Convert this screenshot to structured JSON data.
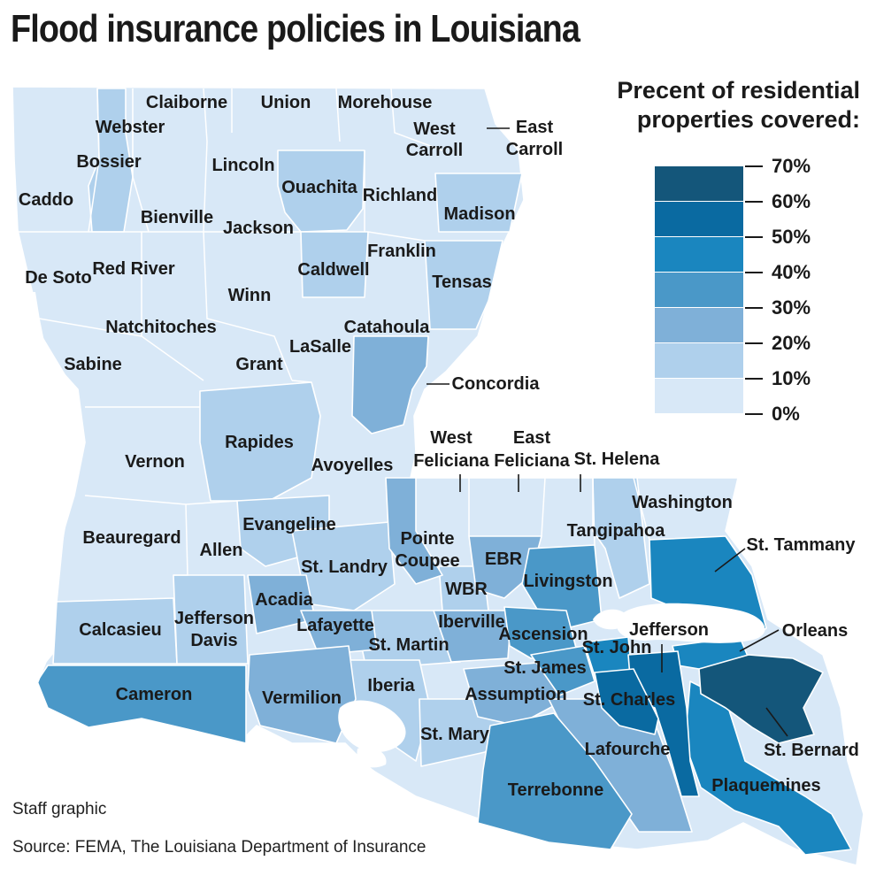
{
  "title": "Flood insurance policies in Louisiana",
  "legend": {
    "title_line1": "Precent of residential",
    "title_line2": "properties covered:",
    "ticks": [
      "70%",
      "60%",
      "50%",
      "40%",
      "30%",
      "20%",
      "10%",
      "0%"
    ],
    "bins": [
      {
        "range": "60-70%",
        "color": "#14567a"
      },
      {
        "range": "50-60%",
        "color": "#0a6aa1"
      },
      {
        "range": "40-50%",
        "color": "#1a86bf"
      },
      {
        "range": "30-40%",
        "color": "#4a98c8"
      },
      {
        "range": "20-30%",
        "color": "#7fb0d8"
      },
      {
        "range": "10-20%",
        "color": "#afd0ec"
      },
      {
        "range": "0-10%",
        "color": "#d8e8f7"
      }
    ]
  },
  "counties": {
    "claiborne": "Claiborne",
    "union": "Union",
    "morehouse": "Morehouse",
    "west_carroll_1": "West",
    "west_carroll_2": "Carroll",
    "east_carroll_1": "East",
    "east_carroll_2": "Carroll",
    "webster": "Webster",
    "bossier": "Bossier",
    "lincoln": "Lincoln",
    "caddo": "Caddo",
    "ouachita": "Ouachita",
    "richland": "Richland",
    "bienville": "Bienville",
    "madison": "Madison",
    "jackson": "Jackson",
    "franklin": "Franklin",
    "de_soto": "De Soto",
    "red_river": "Red River",
    "caldwell": "Caldwell",
    "tensas": "Tensas",
    "winn": "Winn",
    "natchitoches": "Natchitoches",
    "catahoula": "Catahoula",
    "lasalle": "LaSalle",
    "sabine": "Sabine",
    "grant": "Grant",
    "concordia": "Concordia",
    "rapides": "Rapides",
    "vernon": "Vernon",
    "avoyelles": "Avoyelles",
    "west_feliciana_1": "West",
    "west_feliciana_2": "Feliciana",
    "east_feliciana_1": "East",
    "east_feliciana_2": "Feliciana",
    "st_helena": "St. Helena",
    "washington": "Washington",
    "evangeline": "Evangeline",
    "beauregard": "Beauregard",
    "allen": "Allen",
    "pointe_coupee_1": "Pointe",
    "pointe_coupee_2": "Coupee",
    "tangipahoa": "Tangipahoa",
    "st_tammany": "St. Tammany",
    "st_landry": "St. Landry",
    "ebr": "EBR",
    "livingston": "Livingston",
    "acadia": "Acadia",
    "wbr": "WBR",
    "calcasieu": "Calcasieu",
    "jefferson_davis_1": "Jefferson",
    "jefferson_davis_2": "Davis",
    "lafayette": "Lafayette",
    "iberville": "Iberville",
    "jefferson": "Jefferson",
    "orleans": "Orleans",
    "ascension": "Ascension",
    "st_martin": "St. Martin",
    "st_john": "St. John",
    "st_james": "St. James",
    "cameron": "Cameron",
    "vermilion": "Vermilion",
    "iberia": "Iberia",
    "assumption": "Assumption",
    "st_charles": "St. Charles",
    "st_mary": "St. Mary",
    "st_bernard": "St. Bernard",
    "lafourche": "Lafourche",
    "terrebonne": "Terrebonne",
    "plaquemines": "Plaquemines"
  },
  "footer": {
    "credit": "Staff graphic",
    "source": "Source: FEMA, The Louisiana Department of Insurance"
  }
}
